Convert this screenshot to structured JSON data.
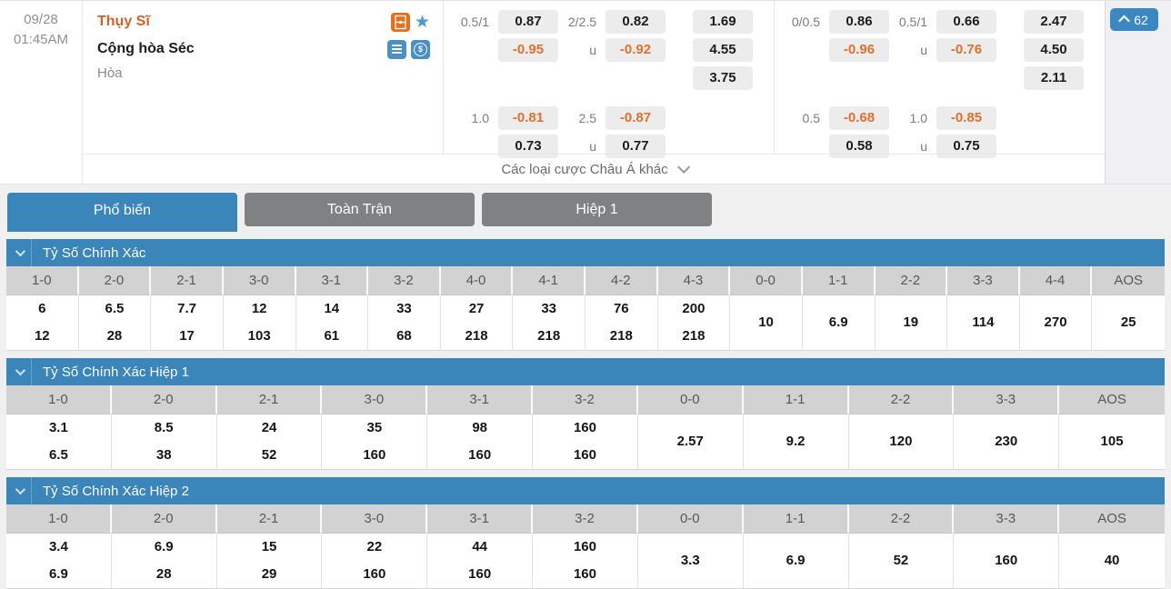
{
  "match": {
    "date": "09/28",
    "time": "01:45AM",
    "home_team": "Thụy Sĩ",
    "away_team": "Cộng hòa Séc",
    "draw_label": "Hòa",
    "badge_count": "62",
    "more_bets_label": "Các loại cược Châu Á khác"
  },
  "icons": {
    "pitch": "pitch-lineup-icon",
    "star": "★",
    "stack": "stack-icon",
    "dollar": "$"
  },
  "odds_groups": [
    {
      "columns": [
        {
          "top_label": "0.5/1",
          "top_a": "0.87",
          "top_b": "-0.95",
          "bottom_label": "1.0",
          "bottom_a": "-0.81",
          "bottom_b": "0.73"
        },
        {
          "top_label": "2/2.5",
          "u_top": "u",
          "top_a": "0.82",
          "top_b": "-0.92",
          "bottom_label": "2.5",
          "u_bottom": "u",
          "bottom_a": "-0.87",
          "bottom_b": "0.77"
        }
      ],
      "outcomes": [
        "1.69",
        "4.55",
        "3.75"
      ]
    },
    {
      "columns": [
        {
          "top_label": "0/0.5",
          "top_a": "0.86",
          "top_b": "-0.96",
          "bottom_label": "0.5",
          "bottom_a": "-0.68",
          "bottom_b": "0.58"
        },
        {
          "top_label": "0.5/1",
          "u_top": "u",
          "top_a": "0.66",
          "top_b": "-0.76",
          "bottom_label": "1.0",
          "u_bottom": "u",
          "bottom_a": "-0.85",
          "bottom_b": "0.75"
        }
      ],
      "outcomes": [
        "2.47",
        "4.50",
        "2.11"
      ]
    }
  ],
  "tabs": [
    {
      "label": "Phổ biến",
      "active": true
    },
    {
      "label": "Toàn Trận",
      "active": false
    },
    {
      "label": "Hiệp 1",
      "active": false
    }
  ],
  "sections": [
    {
      "title": "Tỷ Số Chính Xác",
      "columns": [
        "1-0",
        "2-0",
        "2-1",
        "3-0",
        "3-1",
        "3-2",
        "4-0",
        "4-1",
        "4-2",
        "4-3",
        "0-0",
        "1-1",
        "2-2",
        "3-3",
        "4-4",
        "AOS"
      ],
      "double_values": [
        [
          "6",
          "12"
        ],
        [
          "6.5",
          "28"
        ],
        [
          "7.7",
          "17"
        ],
        [
          "12",
          "103"
        ],
        [
          "14",
          "61"
        ],
        [
          "33",
          "68"
        ],
        [
          "27",
          "218"
        ],
        [
          "33",
          "218"
        ],
        [
          "76",
          "218"
        ],
        [
          "200",
          "218"
        ]
      ],
      "single_values": [
        "10",
        "6.9",
        "19",
        "114",
        "270",
        "25"
      ]
    },
    {
      "title": "Tỷ Số Chính Xác Hiệp 1",
      "columns": [
        "1-0",
        "2-0",
        "2-1",
        "3-0",
        "3-1",
        "3-2",
        "0-0",
        "1-1",
        "2-2",
        "3-3",
        "AOS"
      ],
      "double_values": [
        [
          "3.1",
          "6.5"
        ],
        [
          "8.5",
          "38"
        ],
        [
          "24",
          "52"
        ],
        [
          "35",
          "160"
        ],
        [
          "98",
          "160"
        ],
        [
          "160",
          "160"
        ]
      ],
      "single_values": [
        "2.57",
        "9.2",
        "120",
        "230",
        "105"
      ]
    },
    {
      "title": "Tỷ Số Chính Xác Hiệp 2",
      "columns": [
        "1-0",
        "2-0",
        "2-1",
        "3-0",
        "3-1",
        "3-2",
        "0-0",
        "1-1",
        "2-2",
        "3-3",
        "AOS"
      ],
      "double_values": [
        [
          "3.4",
          "6.9"
        ],
        [
          "6.9",
          "28"
        ],
        [
          "15",
          "29"
        ],
        [
          "22",
          "160"
        ],
        [
          "44",
          "160"
        ],
        [
          "160",
          "160"
        ]
      ],
      "single_values": [
        "3.3",
        "6.9",
        "52",
        "160",
        "40"
      ]
    }
  ],
  "colors": {
    "accent_blue": "#3a86bb",
    "badge_blue": "#3a87c2",
    "tab_gray": "#7f8182",
    "negative_orange": "#e0702e",
    "home_team_orange": "#d2622a",
    "pill_bg": "#ececec",
    "table_header_gray": "#d2d2d2"
  }
}
